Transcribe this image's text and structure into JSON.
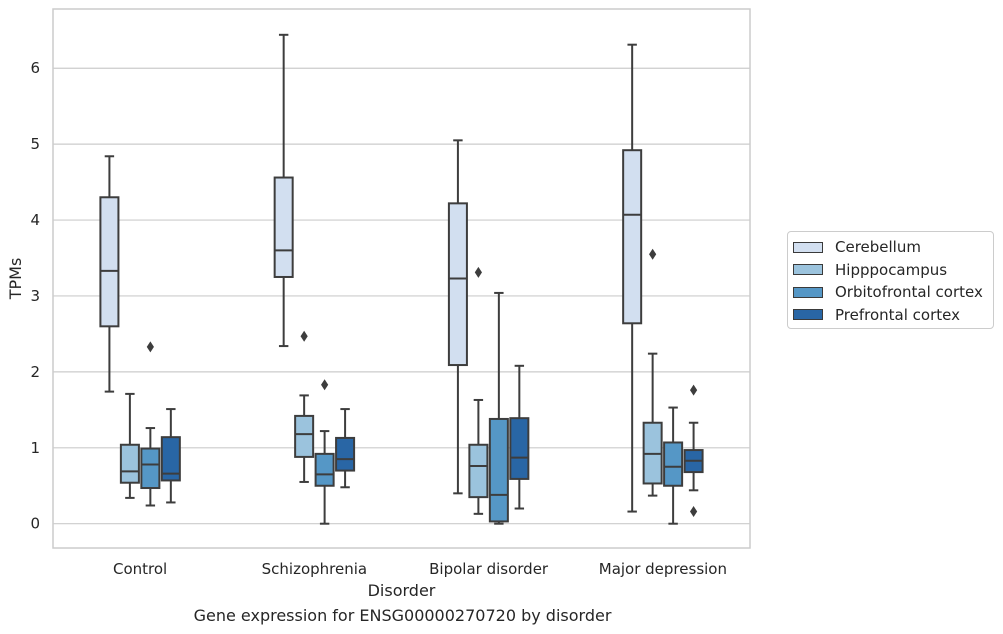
{
  "chart_data": {
    "type": "box",
    "xlabel": "Disorder",
    "ylabel": "TPMs",
    "caption": "Gene expression for ENSG00000270720 by disorder",
    "categories": [
      "Control",
      "Schizophrenia",
      "Bipolar disorder",
      "Major depression"
    ],
    "y_ticks": [
      0,
      1,
      2,
      3,
      4,
      5,
      6
    ],
    "ylim": [
      -0.32,
      6.78
    ],
    "grid": "horizontal",
    "legend_position": "right",
    "series": [
      {
        "name": "Cerebellum",
        "color": "#d2dff0",
        "boxes": [
          {
            "whisker_low": 1.74,
            "q1": 2.6,
            "median": 3.33,
            "q3": 4.3,
            "whisker_high": 4.84,
            "outliers": []
          },
          {
            "whisker_low": 2.34,
            "q1": 3.25,
            "median": 3.6,
            "q3": 4.56,
            "whisker_high": 6.44,
            "outliers": []
          },
          {
            "whisker_low": 0.4,
            "q1": 2.09,
            "median": 3.23,
            "q3": 4.22,
            "whisker_high": 5.05,
            "outliers": []
          },
          {
            "whisker_low": 0.16,
            "q1": 2.64,
            "median": 4.07,
            "q3": 4.92,
            "whisker_high": 6.31,
            "outliers": []
          }
        ]
      },
      {
        "name": "Hipppocampus",
        "color": "#9bc3dd",
        "boxes": [
          {
            "whisker_low": 0.34,
            "q1": 0.54,
            "median": 0.69,
            "q3": 1.04,
            "whisker_high": 1.71,
            "outliers": []
          },
          {
            "whisker_low": 0.55,
            "q1": 0.88,
            "median": 1.18,
            "q3": 1.42,
            "whisker_high": 1.69,
            "outliers": [
              2.47
            ]
          },
          {
            "whisker_low": 0.13,
            "q1": 0.35,
            "median": 0.76,
            "q3": 1.04,
            "whisker_high": 1.63,
            "outliers": [
              3.31
            ]
          },
          {
            "whisker_low": 0.37,
            "q1": 0.53,
            "median": 0.92,
            "q3": 1.33,
            "whisker_high": 2.24,
            "outliers": [
              3.55
            ]
          }
        ]
      },
      {
        "name": "Orbitofrontal cortex",
        "color": "#5597c6",
        "boxes": [
          {
            "whisker_low": 0.24,
            "q1": 0.47,
            "median": 0.78,
            "q3": 0.99,
            "whisker_high": 1.26,
            "outliers": [
              2.33
            ]
          },
          {
            "whisker_low": 0.0,
            "q1": 0.5,
            "median": 0.65,
            "q3": 0.92,
            "whisker_high": 1.22,
            "outliers": [
              1.83
            ]
          },
          {
            "whisker_low": 0.0,
            "q1": 0.03,
            "median": 0.38,
            "q3": 1.38,
            "whisker_high": 3.04,
            "outliers": []
          },
          {
            "whisker_low": 0.0,
            "q1": 0.5,
            "median": 0.75,
            "q3": 1.07,
            "whisker_high": 1.53,
            "outliers": []
          }
        ]
      },
      {
        "name": "Prefrontal cortex",
        "color": "#2966a5",
        "boxes": [
          {
            "whisker_low": 0.28,
            "q1": 0.57,
            "median": 0.66,
            "q3": 1.14,
            "whisker_high": 1.51,
            "outliers": []
          },
          {
            "whisker_low": 0.48,
            "q1": 0.7,
            "median": 0.85,
            "q3": 1.13,
            "whisker_high": 1.51,
            "outliers": []
          },
          {
            "whisker_low": 0.2,
            "q1": 0.59,
            "median": 0.87,
            "q3": 1.39,
            "whisker_high": 2.08,
            "outliers": []
          },
          {
            "whisker_low": 0.44,
            "q1": 0.68,
            "median": 0.83,
            "q3": 0.97,
            "whisker_high": 1.33,
            "outliers": [
              1.76,
              0.16
            ]
          }
        ]
      }
    ]
  }
}
